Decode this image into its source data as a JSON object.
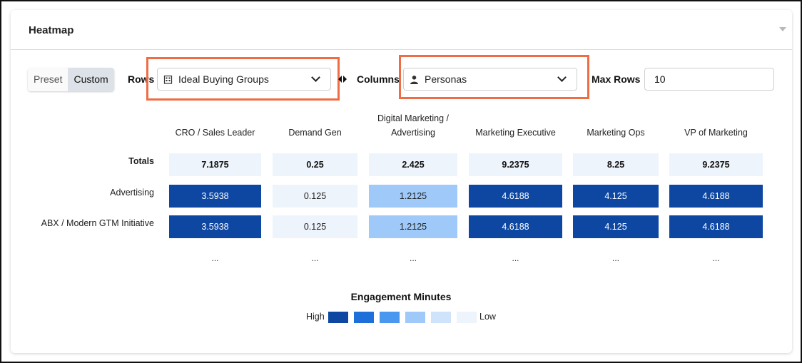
{
  "card": {
    "title": "Heatmap"
  },
  "toggle": {
    "preset_label": "Preset",
    "custom_label": "Custom",
    "active": "Custom"
  },
  "rows_control": {
    "label": "Rows",
    "selected": "Ideal Buying Groups",
    "icon": "building-icon"
  },
  "columns_control": {
    "label": "Columns",
    "selected": "Personas",
    "icon": "person-icon"
  },
  "max_rows": {
    "label": "Max Rows",
    "value": "10"
  },
  "heatmap": {
    "columns": [
      "CRO / Sales Leader",
      "Demand Gen",
      "Digital Marketing / Advertising",
      "Marketing Executive",
      "Marketing Ops",
      "VP of Marketing"
    ],
    "columns_line1": [
      "CRO / Sales Leader",
      "Demand Gen",
      "Digital Marketing /",
      "Marketing Executive",
      "Marketing Ops",
      "VP of Marketing"
    ],
    "columns_line2": [
      "",
      "",
      "Advertising",
      "",
      "",
      ""
    ],
    "totals_label": "Totals",
    "totals": [
      "7.1875",
      "0.25",
      "2.425",
      "9.2375",
      "8.25",
      "9.2375"
    ],
    "rows": [
      {
        "label": "Advertising",
        "values": [
          "3.5938",
          "0.125",
          "1.2125",
          "4.6188",
          "4.125",
          "4.6188"
        ],
        "levels": [
          "high",
          "low",
          "mid",
          "high",
          "high",
          "high"
        ]
      },
      {
        "label": "ABX / Modern GTM Initiative",
        "values": [
          "3.5938",
          "0.125",
          "1.2125",
          "4.6188",
          "4.125",
          "4.6188"
        ],
        "levels": [
          "high",
          "low",
          "mid",
          "high",
          "high",
          "high"
        ]
      }
    ],
    "ellipsis": "..."
  },
  "legend": {
    "title": "Engagement Minutes",
    "high_label": "High",
    "low_label": "Low",
    "colors": [
      "#0d47a1",
      "#1e6fd9",
      "#4a97ef",
      "#9ec9f8",
      "#cfe3fb",
      "#eef4fb"
    ]
  }
}
